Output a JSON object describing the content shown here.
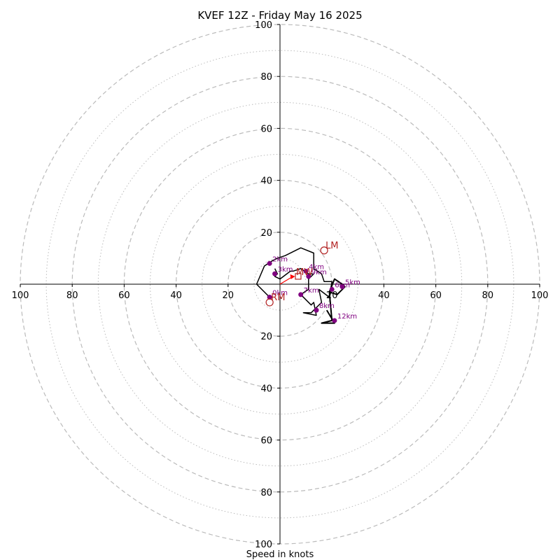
{
  "chart_data": {
    "type": "hodograph",
    "title": "KVEF 12Z - Friday May 16 2025",
    "xlabel": "Speed in knots",
    "range": 100,
    "ring_major": [
      20,
      40,
      60,
      80,
      100
    ],
    "ring_minor": [
      10,
      30,
      50,
      70,
      90
    ],
    "grid": true,
    "x_ticks": [
      {
        "value": -100,
        "label": "100"
      },
      {
        "value": -80,
        "label": "80"
      },
      {
        "value": -60,
        "label": "60"
      },
      {
        "value": -40,
        "label": "40"
      },
      {
        "value": -20,
        "label": "20"
      },
      {
        "value": 20,
        "label": "20"
      },
      {
        "value": 40,
        "label": "40"
      },
      {
        "value": 60,
        "label": "60"
      },
      {
        "value": 80,
        "label": "80"
      },
      {
        "value": 100,
        "label": "100"
      }
    ],
    "y_ticks": [
      {
        "value": 100,
        "label": "100"
      },
      {
        "value": 80,
        "label": "80"
      },
      {
        "value": 60,
        "label": "60"
      },
      {
        "value": 40,
        "label": "40"
      },
      {
        "value": 20,
        "label": "20"
      },
      {
        "value": -20,
        "label": "20"
      },
      {
        "value": -40,
        "label": "40"
      },
      {
        "value": -60,
        "label": "60"
      },
      {
        "value": -80,
        "label": "80"
      },
      {
        "value": -100,
        "label": "100"
      }
    ],
    "hodograph_line": [
      [
        -4,
        -5
      ],
      [
        -9,
        0
      ],
      [
        -6,
        7
      ],
      [
        -3,
        9
      ],
      [
        -1,
        10
      ],
      [
        2,
        11
      ],
      [
        8,
        14
      ],
      [
        13,
        12
      ],
      [
        13,
        6
      ],
      [
        16,
        4
      ],
      [
        17,
        1
      ],
      [
        20,
        1
      ],
      [
        19,
        -5
      ],
      [
        15,
        -2
      ],
      [
        16,
        -7
      ],
      [
        12,
        -11
      ],
      [
        9,
        -11
      ],
      [
        14,
        -12
      ],
      [
        13,
        -7
      ],
      [
        12,
        -8
      ],
      [
        8,
        -4
      ],
      [
        11,
        -2
      ],
      [
        11,
        2
      ],
      [
        13,
        4
      ],
      [
        11,
        4
      ],
      [
        8,
        6
      ],
      [
        5,
        5
      ],
      [
        4,
        5
      ],
      [
        0,
        2
      ],
      [
        -2,
        3
      ],
      [
        -1,
        4
      ],
      [
        -2,
        6
      ]
    ],
    "hodograph_line2": [
      [
        18,
        -10
      ],
      [
        21,
        -15
      ],
      [
        16,
        -15
      ],
      [
        20,
        -14
      ],
      [
        19,
        -3
      ],
      [
        21,
        2
      ],
      [
        24,
        0
      ],
      [
        25,
        -1
      ],
      [
        22,
        -4
      ],
      [
        19,
        -3
      ]
    ],
    "height_points": [
      {
        "label": "0km",
        "u": -4,
        "v": -5
      },
      {
        "label": "2km",
        "u": -4,
        "v": 8
      },
      {
        "label": "3km",
        "u": -2,
        "v": 4
      },
      {
        "label": "4km",
        "u": 10,
        "v": 5
      },
      {
        "label": "5km",
        "u": 24,
        "v": -1
      },
      {
        "label": "6km",
        "u": 20,
        "v": -2
      },
      {
        "label": "7km",
        "u": 8,
        "v": -4
      },
      {
        "label": "8km",
        "u": 14,
        "v": -10
      },
      {
        "label": "9km",
        "u": 11,
        "v": 3
      },
      {
        "label": "12km",
        "u": 21,
        "v": -14
      }
    ],
    "storm_motion": [
      {
        "label": "LM",
        "u": 17,
        "v": 13,
        "color": "#b22222"
      },
      {
        "label": "RM",
        "u": -4,
        "v": -7,
        "color": "#b22222"
      }
    ],
    "mean_wind": {
      "label": "MW",
      "u": 7,
      "v": 3,
      "color": "#b22222"
    },
    "shear_vector": {
      "u0": 0,
      "v0": 0,
      "u1": 5,
      "v1": 3,
      "color": "#ff0000"
    },
    "colors": {
      "line": "#000000",
      "points": "#800080",
      "markers": "#b22222",
      "grid": "#bbbbbb"
    }
  }
}
